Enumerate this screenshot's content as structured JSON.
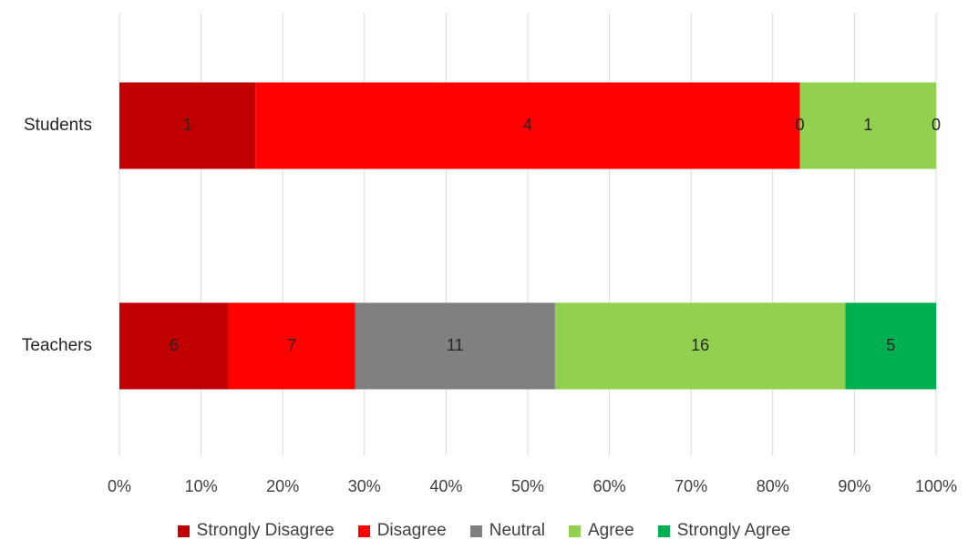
{
  "chart_data": {
    "type": "bar",
    "orientation": "horizontal",
    "stacked": "percent",
    "categories": [
      "Students",
      "Teachers"
    ],
    "series": [
      {
        "name": "Strongly Disagree",
        "color": "#C00000",
        "values": [
          1,
          6
        ]
      },
      {
        "name": "Disagree",
        "color": "#FF0000",
        "values": [
          4,
          7
        ]
      },
      {
        "name": "Neutral",
        "color": "#808080",
        "values": [
          0,
          11
        ]
      },
      {
        "name": "Agree",
        "color": "#92D050",
        "values": [
          1,
          16
        ]
      },
      {
        "name": "Strongly Agree",
        "color": "#00B050",
        "values": [
          0,
          5
        ]
      }
    ],
    "x_ticks": [
      "0%",
      "10%",
      "20%",
      "30%",
      "40%",
      "50%",
      "60%",
      "70%",
      "80%",
      "90%",
      "100%"
    ],
    "xlim": [
      0,
      100
    ],
    "grid": "vertical",
    "legend_position": "bottom",
    "data_labels": true,
    "title": "",
    "xlabel": "",
    "ylabel": ""
  }
}
